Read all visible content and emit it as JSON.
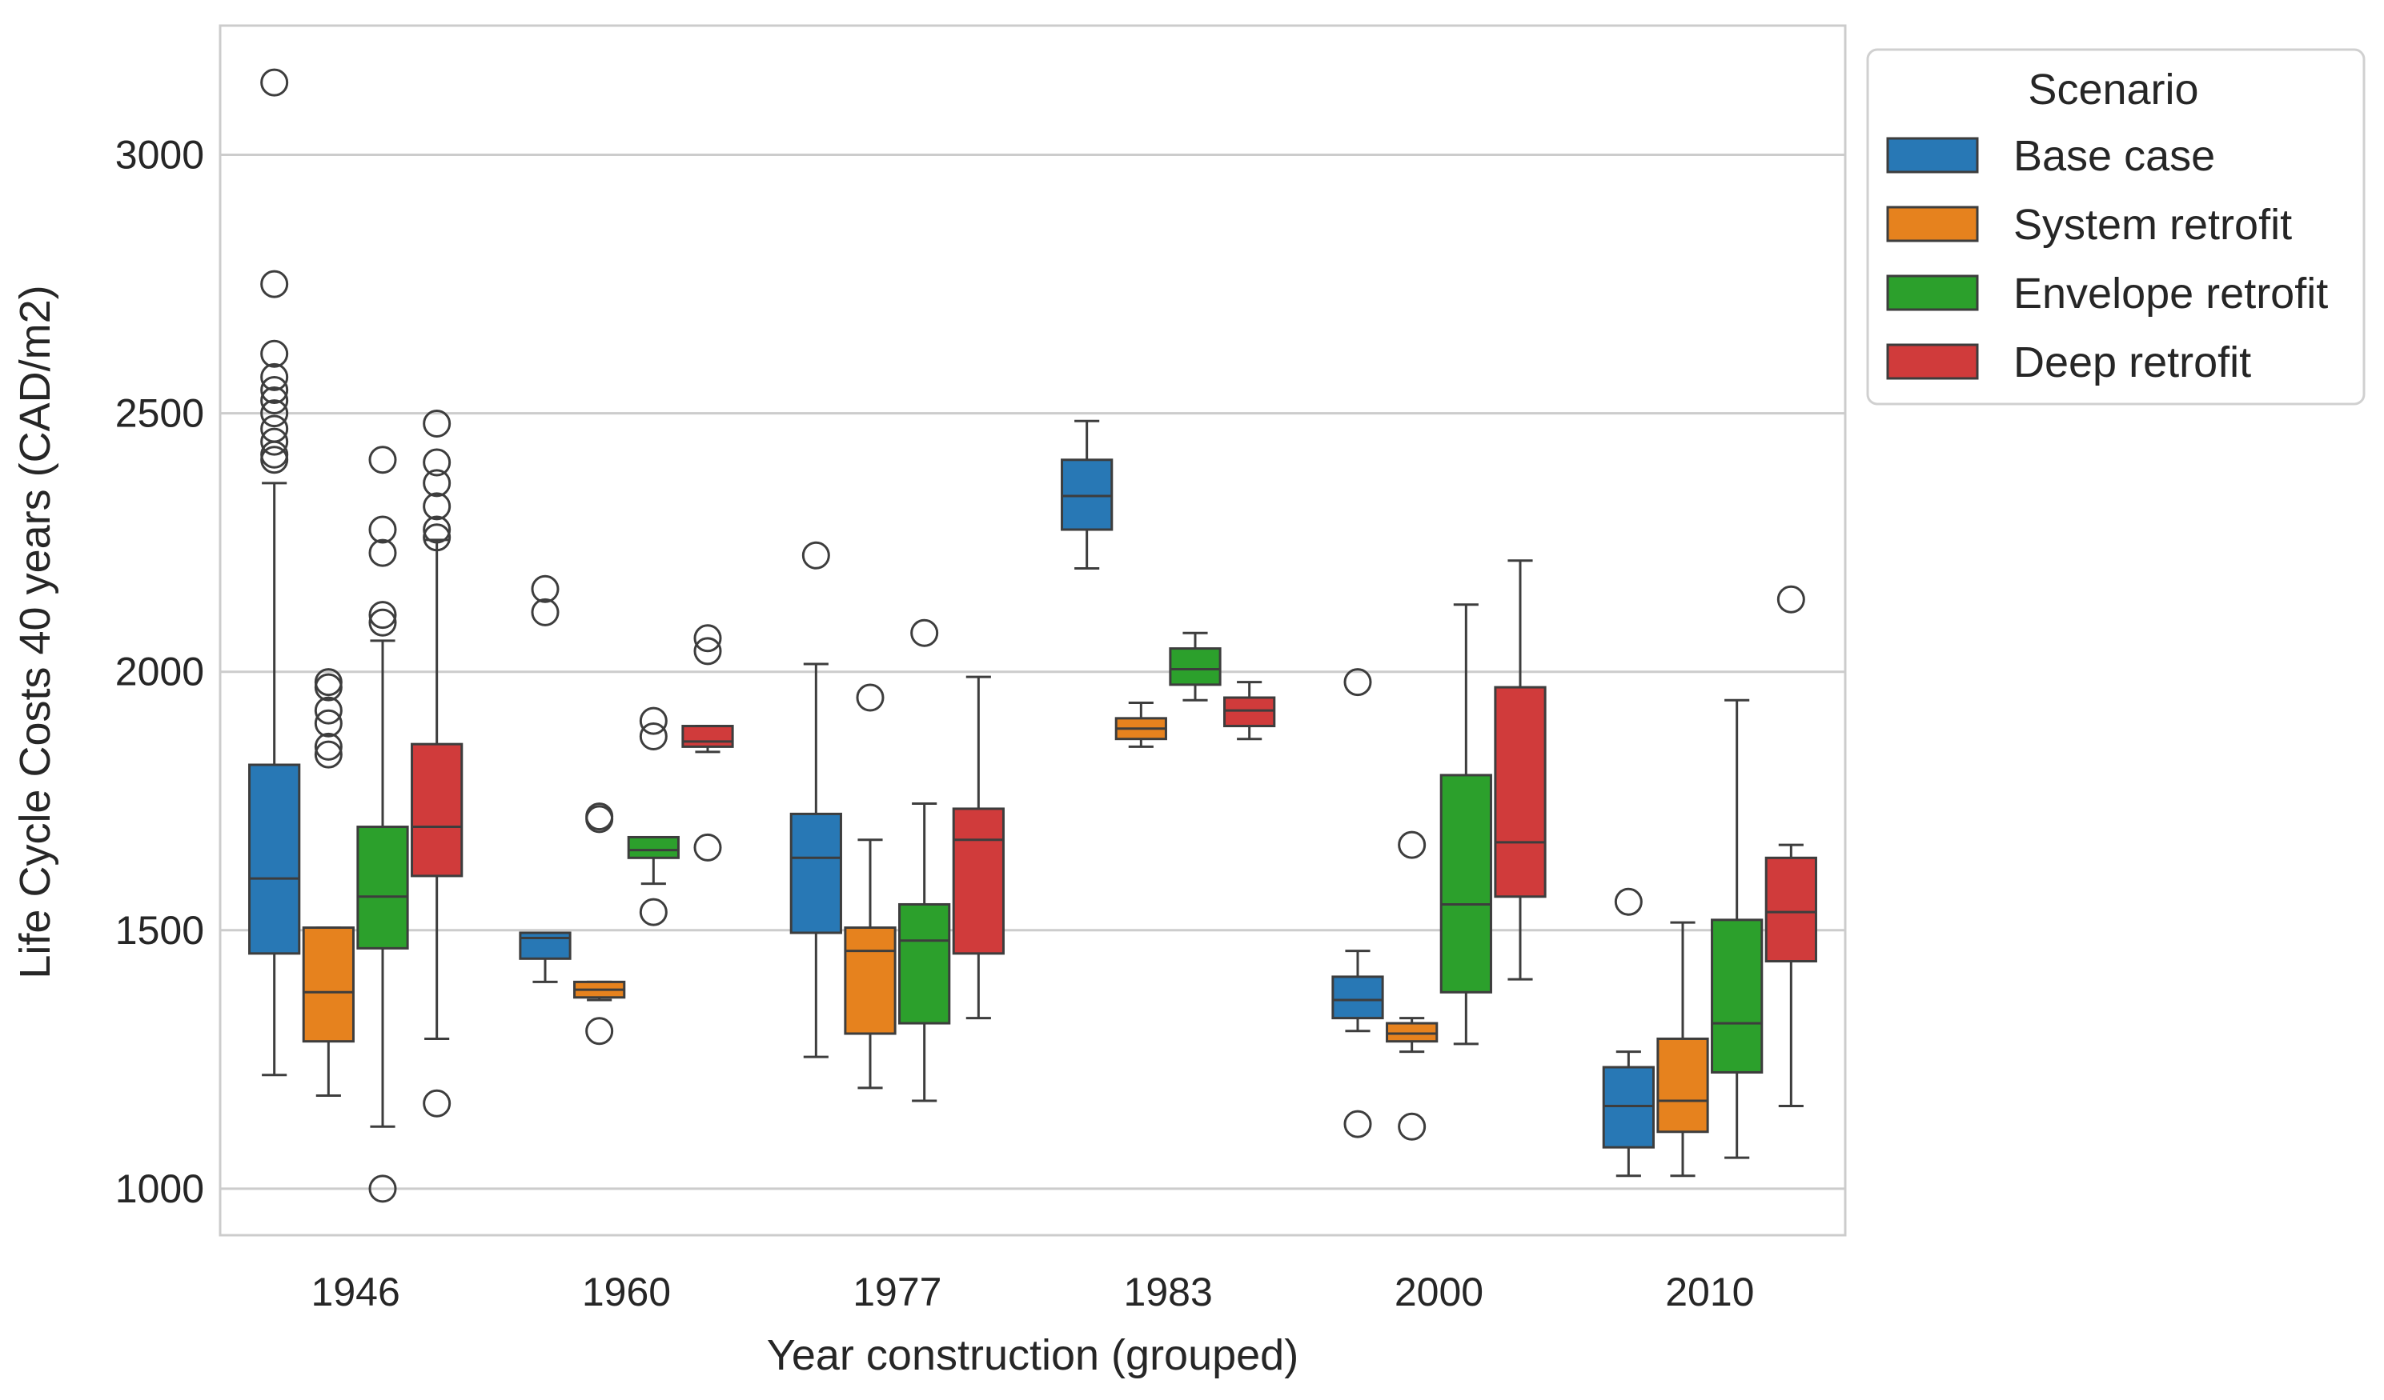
{
  "chart_data": {
    "type": "boxplot",
    "xlabel": "Year construction (grouped)",
    "ylabel": "Life Cycle Costs 40 years (CAD/m2)",
    "ylim": [
      910,
      3250
    ],
    "yticks": [
      1000,
      1500,
      2000,
      2500,
      3000
    ],
    "grid": "horizontal",
    "legend": {
      "title": "Scenario",
      "position": "outside-top-right"
    },
    "categories": [
      "1946",
      "1960",
      "1977",
      "1983",
      "2000",
      "2010"
    ],
    "series": [
      {
        "name": "Base case",
        "color": "#2878b5",
        "boxes": [
          {
            "q1": 1455,
            "median": 1600,
            "q3": 1820,
            "whislo": 1220,
            "whishi": 2365,
            "fliers": [
              3140,
              2750,
              2615,
              2570,
              2545,
              2525,
              2500,
              2470,
              2445,
              2420,
              2410
            ]
          },
          {
            "q1": 1445,
            "median": 1485,
            "q3": 1495,
            "whislo": 1400,
            "whishi": 1495,
            "fliers": [
              2160,
              2115
            ]
          },
          {
            "q1": 1495,
            "median": 1640,
            "q3": 1725,
            "whislo": 1255,
            "whishi": 2015,
            "fliers": [
              2225
            ]
          },
          {
            "q1": 2275,
            "median": 2340,
            "q3": 2410,
            "whislo": 2200,
            "whishi": 2485,
            "fliers": []
          },
          {
            "q1": 1330,
            "median": 1365,
            "q3": 1410,
            "whislo": 1305,
            "whishi": 1460,
            "fliers": [
              1980,
              1125
            ]
          },
          {
            "q1": 1080,
            "median": 1160,
            "q3": 1235,
            "whislo": 1025,
            "whishi": 1265,
            "fliers": [
              1555
            ]
          }
        ]
      },
      {
        "name": "System retrofit",
        "color": "#e6821e",
        "boxes": [
          {
            "q1": 1285,
            "median": 1380,
            "q3": 1505,
            "whislo": 1180,
            "whishi": 1505,
            "fliers": [
              1980,
              1970,
              1925,
              1900,
              1855,
              1840
            ]
          },
          {
            "q1": 1370,
            "median": 1385,
            "q3": 1400,
            "whislo": 1365,
            "whishi": 1400,
            "fliers": [
              1720,
              1715,
              1305
            ]
          },
          {
            "q1": 1300,
            "median": 1460,
            "q3": 1505,
            "whislo": 1195,
            "whishi": 1675,
            "fliers": [
              1950
            ]
          },
          {
            "q1": 1870,
            "median": 1890,
            "q3": 1910,
            "whislo": 1855,
            "whishi": 1940,
            "fliers": []
          },
          {
            "q1": 1285,
            "median": 1300,
            "q3": 1320,
            "whislo": 1265,
            "whishi": 1330,
            "fliers": [
              1665,
              1120
            ]
          },
          {
            "q1": 1110,
            "median": 1170,
            "q3": 1290,
            "whislo": 1025,
            "whishi": 1515,
            "fliers": []
          }
        ]
      },
      {
        "name": "Envelope retrofit",
        "color": "#2ca02c",
        "boxes": [
          {
            "q1": 1465,
            "median": 1565,
            "q3": 1700,
            "whislo": 1120,
            "whishi": 2060,
            "fliers": [
              2410,
              2275,
              2230,
              2110,
              2095,
              1000
            ]
          },
          {
            "q1": 1640,
            "median": 1655,
            "q3": 1680,
            "whislo": 1590,
            "whishi": 1680,
            "fliers": [
              1905,
              1875,
              1535
            ]
          },
          {
            "q1": 1320,
            "median": 1480,
            "q3": 1550,
            "whislo": 1170,
            "whishi": 1745,
            "fliers": [
              2075
            ]
          },
          {
            "q1": 1975,
            "median": 2005,
            "q3": 2045,
            "whislo": 1945,
            "whishi": 2075,
            "fliers": []
          },
          {
            "q1": 1380,
            "median": 1550,
            "q3": 1800,
            "whislo": 1280,
            "whishi": 2130,
            "fliers": []
          },
          {
            "q1": 1225,
            "median": 1320,
            "q3": 1520,
            "whislo": 1060,
            "whishi": 1945,
            "fliers": []
          }
        ]
      },
      {
        "name": "Deep retrofit",
        "color": "#d03b3b",
        "boxes": [
          {
            "q1": 1605,
            "median": 1700,
            "q3": 1860,
            "whislo": 1290,
            "whishi": 2255,
            "fliers": [
              2480,
              2405,
              2365,
              2320,
              2275,
              2260,
              1165
            ]
          },
          {
            "q1": 1855,
            "median": 1865,
            "q3": 1895,
            "whislo": 1845,
            "whishi": 1895,
            "fliers": [
              2065,
              2040,
              1660
            ]
          },
          {
            "q1": 1455,
            "median": 1675,
            "q3": 1735,
            "whislo": 1330,
            "whishi": 1990,
            "fliers": []
          },
          {
            "q1": 1895,
            "median": 1925,
            "q3": 1950,
            "whislo": 1870,
            "whishi": 1980,
            "fliers": []
          },
          {
            "q1": 1565,
            "median": 1670,
            "q3": 1970,
            "whislo": 1405,
            "whishi": 2215,
            "fliers": []
          },
          {
            "q1": 1440,
            "median": 1535,
            "q3": 1640,
            "whislo": 1160,
            "whishi": 1665,
            "fliers": [
              2140
            ]
          }
        ]
      }
    ]
  }
}
